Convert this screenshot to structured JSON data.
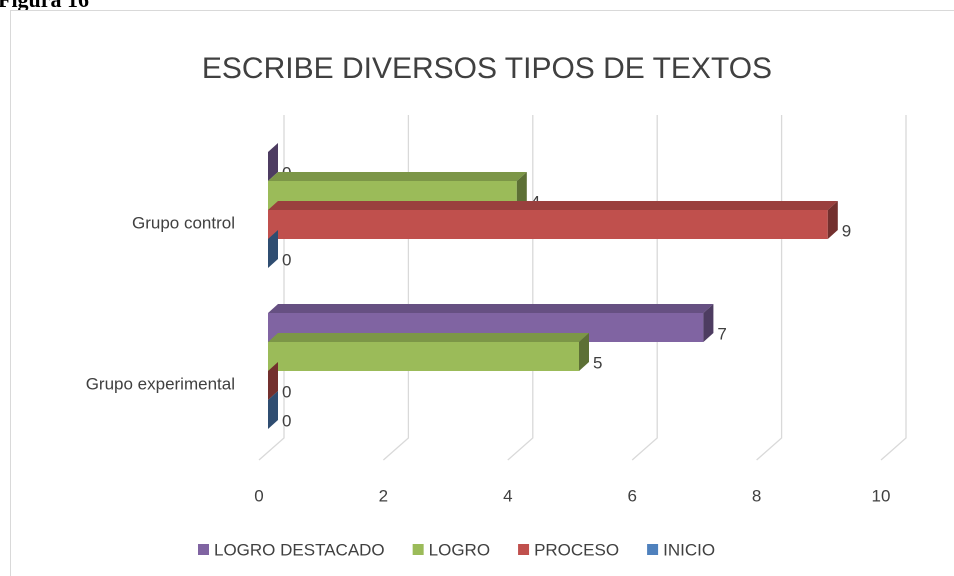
{
  "figure_label": "Figura 16",
  "chart_data": {
    "type": "bar3d_horizontal",
    "title": "ESCRIBE DIVERSOS TIPOS DE TEXTOS",
    "categories": [
      "Grupo control",
      "Grupo experimental"
    ],
    "series": [
      {
        "name": "LOGRO DESTACADO",
        "color": "#8064a2",
        "values": [
          0,
          7
        ]
      },
      {
        "name": "LOGRO",
        "color": "#9bbb59",
        "values": [
          4,
          5
        ]
      },
      {
        "name": "PROCESO",
        "color": "#c0504d",
        "values": [
          9,
          0
        ]
      },
      {
        "name": "INICIO",
        "color": "#4f81bd",
        "values": [
          0,
          0
        ]
      }
    ],
    "xlim": [
      0,
      10
    ],
    "xticks": [
      0,
      2,
      4,
      6,
      8,
      10
    ],
    "grid": true,
    "legend": "bottom"
  }
}
